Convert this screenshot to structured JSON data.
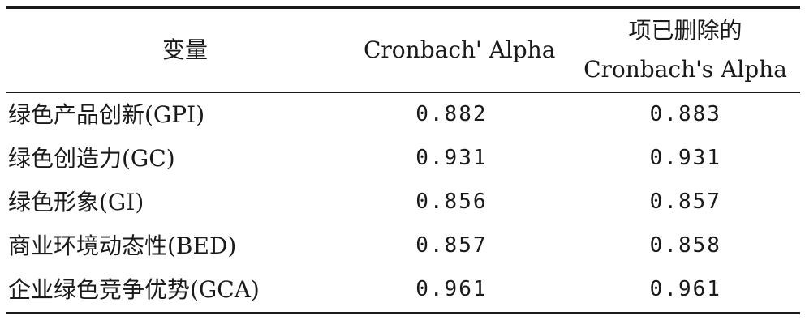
{
  "table": {
    "headers": {
      "variable": "变量",
      "alpha": "Cronbach' Alpha",
      "deleted_line1": "项已删除的",
      "deleted_line2": "Cronbach's Alpha"
    },
    "rows": [
      {
        "variable": "绿色产品创新(GPI)",
        "alpha": "0.882",
        "deleted": "0.883"
      },
      {
        "variable": "绿色创造力(GC)",
        "alpha": "0.931",
        "deleted": "0.931"
      },
      {
        "variable": "绿色形象(GI)",
        "alpha": "0.856",
        "deleted": "0.857"
      },
      {
        "variable": "商业环境动态性(BED)",
        "alpha": "0.857",
        "deleted": "0.858"
      },
      {
        "variable": "企业绿色竞争优势(GCA)",
        "alpha": "0.961",
        "deleted": "0.961"
      }
    ]
  }
}
